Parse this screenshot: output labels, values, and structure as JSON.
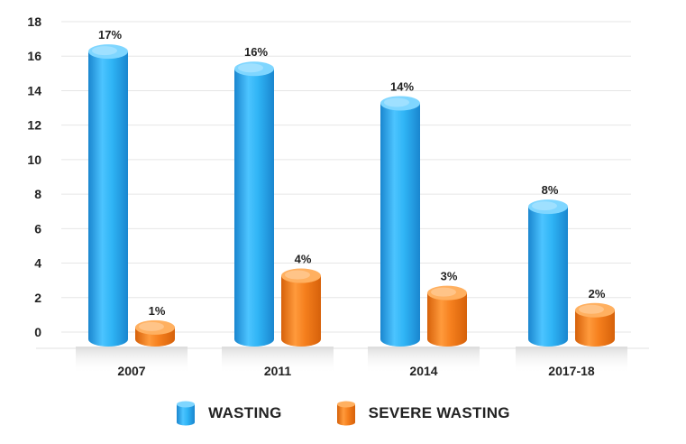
{
  "chart_data": {
    "type": "bar",
    "categories": [
      "2007",
      "2011",
      "2014",
      "2017-18"
    ],
    "series": [
      {
        "name": "WASTING",
        "values": [
          17,
          16,
          14,
          8
        ],
        "labels": [
          "17%",
          "16%",
          "14%",
          "8%"
        ],
        "color": "#2fb4f5",
        "dark": "#1a86cf",
        "light": "#7fd6ff"
      },
      {
        "name": "SEVERE WASTING",
        "values": [
          1,
          4,
          3,
          2
        ],
        "labels": [
          "1%",
          "4%",
          "3%",
          "2%"
        ],
        "color": "#f57f1d",
        "dark": "#d6610a",
        "light": "#ffb060"
      }
    ],
    "yticks": [
      "0",
      "2",
      "4",
      "6",
      "8",
      "10",
      "12",
      "14",
      "16",
      "18"
    ],
    "ylim": [
      0,
      18
    ],
    "grid": true,
    "legend_position": "bottom",
    "title": "",
    "xlabel": "",
    "ylabel": ""
  }
}
